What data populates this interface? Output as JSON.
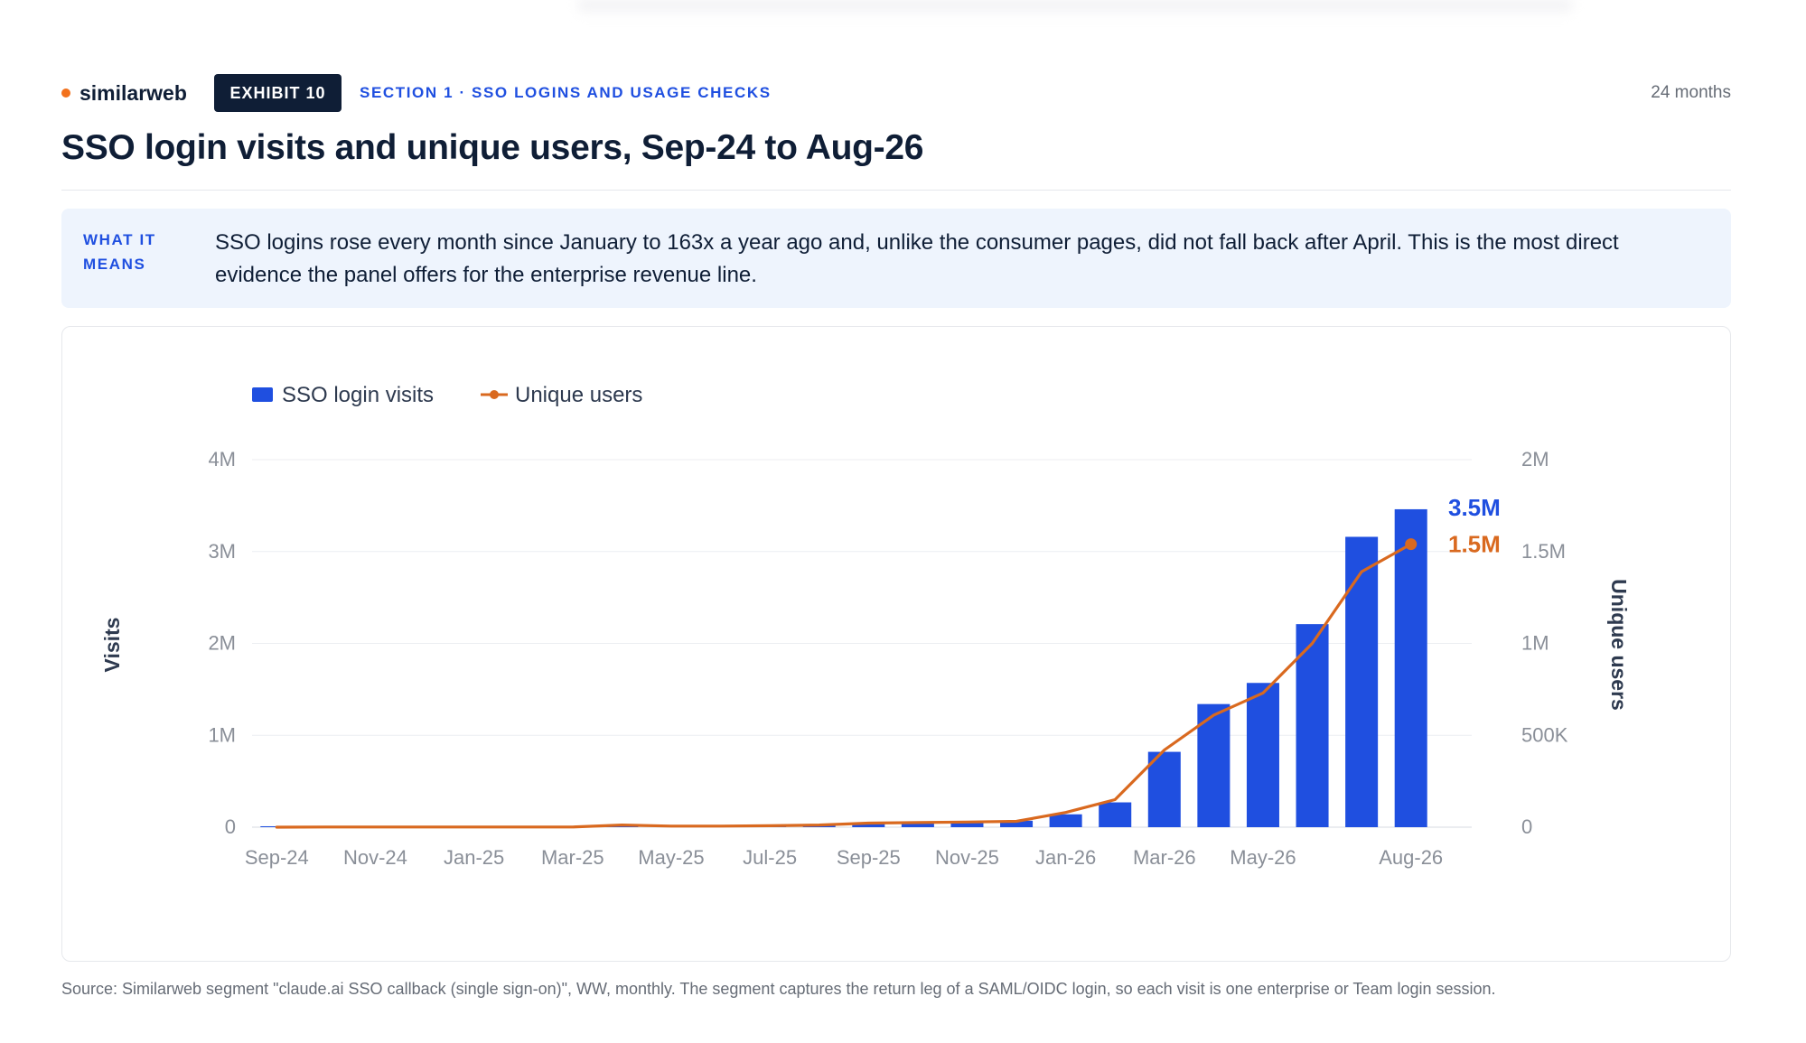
{
  "brand": {
    "name": "similarweb",
    "dot_color": "#f2711c"
  },
  "header": {
    "exhibit": "EXHIBIT 10",
    "section": "SECTION 1 · SSO LOGINS AND USAGE CHECKS",
    "period": "24 months"
  },
  "title": "SSO login visits and unique users, Sep-24 to Aug-26",
  "callout": {
    "label": "WHAT IT MEANS",
    "text": "SSO logins rose every month since January to 163x a year ago and, unlike the consumer pages, did not fall back after April. This is the most direct evidence the panel offers for the enterprise revenue line."
  },
  "chart_data": {
    "type": "bar",
    "categories": [
      "Sep-24",
      "Oct-24",
      "Nov-24",
      "Dec-24",
      "Jan-25",
      "Feb-25",
      "Mar-25",
      "Apr-25",
      "May-25",
      "Jun-25",
      "Jul-25",
      "Aug-25",
      "Sep-25",
      "Oct-25",
      "Nov-25",
      "Dec-25",
      "Jan-26",
      "Feb-26",
      "Mar-26",
      "Apr-26",
      "May-26",
      "Jun-26",
      "Jul-26",
      "Aug-26"
    ],
    "tick_labels": [
      "Sep-24",
      "Nov-24",
      "Jan-25",
      "Mar-25",
      "May-25",
      "Jul-25",
      "Sep-25",
      "Nov-25",
      "Jan-26",
      "Mar-26",
      "May-26",
      "Aug-26"
    ],
    "series": [
      {
        "name": "SSO login visits",
        "type": "bar",
        "axis": "left",
        "color": "#1f4fe0",
        "values": [
          10000,
          5000,
          5000,
          5000,
          5000,
          5000,
          10000,
          15000,
          10000,
          10000,
          15000,
          20000,
          40000,
          50000,
          60000,
          70000,
          140000,
          270000,
          820000,
          1340000,
          1570000,
          2210000,
          3160000,
          3460000
        ]
      },
      {
        "name": "Unique users",
        "type": "line",
        "axis": "right",
        "color": "#d9691f",
        "values": [
          0,
          1000,
          1000,
          1000,
          1000,
          1000,
          1000,
          12000,
          6000,
          6000,
          8000,
          12000,
          22000,
          25000,
          28000,
          32000,
          80000,
          150000,
          420000,
          610000,
          730000,
          1000000,
          1390000,
          1540000
        ]
      }
    ],
    "end_labels": [
      "3.5M",
      "1.5M"
    ],
    "y_left": {
      "label": "Visits",
      "ylim": [
        0,
        4000000
      ],
      "ticks": [
        "0",
        "1M",
        "2M",
        "3M",
        "4M"
      ]
    },
    "y_right": {
      "label": "Unique users",
      "ylim": [
        0,
        2000000
      ],
      "ticks": [
        "0",
        "500K",
        "1M",
        "1.5M",
        "2M"
      ]
    },
    "legend": "top-left",
    "grid": true
  },
  "source": "Source: Similarweb segment \"claude.ai SSO callback (single sign-on)\", WW, monthly. The segment captures the return leg of a SAML/OIDC login, so each visit is one enterprise or Team login session."
}
